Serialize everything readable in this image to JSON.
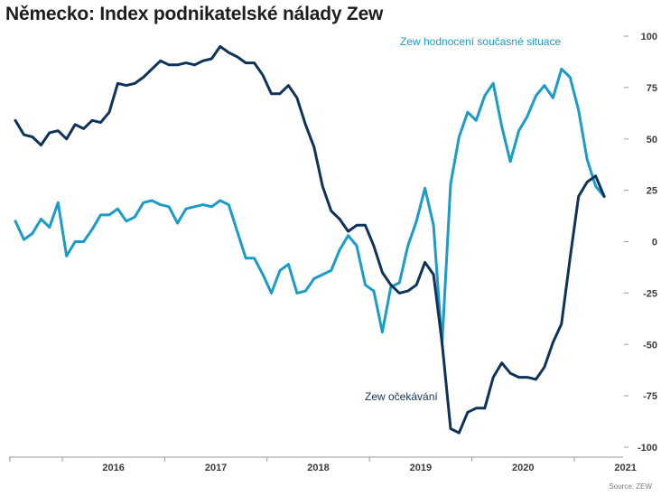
{
  "title": "Německo: Index podnikatelské nálady Zew",
  "source": "Source: ZEW",
  "chart_data": {
    "type": "line",
    "title": "Německo: Index podnikatelské nálady Zew",
    "ylim": [
      -100,
      100
    ],
    "yticks": [
      100,
      75,
      50,
      25,
      0,
      -25,
      -50,
      -75,
      -100
    ],
    "x_start": "2015-07",
    "x_period": "monthly",
    "xtick_labels": [
      "2016",
      "2017",
      "2018",
      "2019",
      "2020",
      "2021"
    ],
    "series": [
      {
        "name": "Zew hodnocení současné situace",
        "color": "#1a9bc9",
        "values": [
          10,
          1,
          4,
          11,
          7,
          19,
          -7,
          0,
          0,
          6,
          13,
          13,
          16,
          10,
          12,
          19,
          20,
          18,
          17,
          9,
          16,
          17,
          18,
          17,
          20,
          18,
          5,
          -8,
          -8,
          -16,
          -25,
          -14,
          -11,
          -25,
          -24,
          -18,
          -16,
          -14,
          -4,
          3,
          -2,
          -21,
          -24,
          -44,
          -22,
          -20,
          -2,
          10,
          26,
          8,
          -50,
          28,
          51,
          63,
          59,
          71,
          77,
          56,
          39,
          54,
          61,
          71,
          76,
          70,
          84,
          80,
          64,
          40,
          27,
          22
        ]
      },
      {
        "name": "Zew očekávání",
        "color": "#0f3358",
        "values": [
          59,
          52,
          51,
          47,
          53,
          54,
          50,
          57,
          55,
          59,
          58,
          63,
          77,
          76,
          77,
          80,
          84,
          88,
          86,
          86,
          87,
          86,
          88,
          89,
          95,
          92,
          90,
          87,
          87,
          81,
          72,
          72,
          76,
          70,
          57,
          46,
          27,
          15,
          11,
          5,
          8,
          8,
          -2,
          -15,
          -21,
          -25,
          -24,
          -21,
          -10,
          -16,
          -49,
          -91,
          -93,
          -83,
          -81,
          -81,
          -66,
          -59,
          -64,
          -66,
          -66,
          -67,
          -61,
          -49,
          -40,
          -8,
          22,
          29,
          32,
          22
        ]
      }
    ],
    "annotations": [
      {
        "text": "Zew hodnocení současné situace",
        "series": 0
      },
      {
        "text": "Zew očekávání",
        "series": 1
      }
    ]
  }
}
